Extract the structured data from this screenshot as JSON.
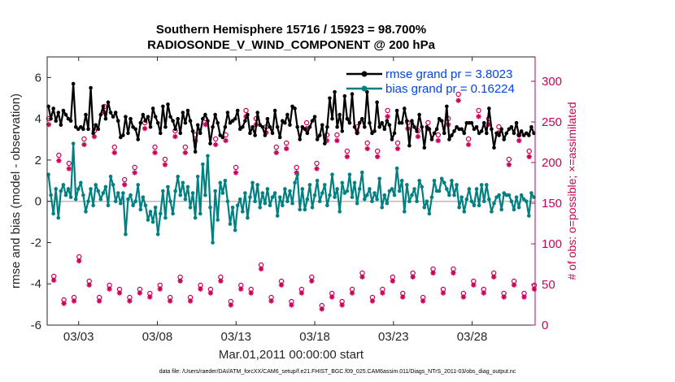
{
  "chart_data": {
    "type": "line",
    "title": "Southern Hemisphere 15716 / 15923 = 98.700%",
    "subtitle": "RADIOSONDE_V_WIND_COMPONENT @ 200 hPa",
    "xlabel": "Mar.01,2011 00:00:00 start",
    "ylabel": "rmse and bias (model - observation)",
    "y2label": "# of obs: o=possible; ×=assimilated",
    "xlim": [
      0,
      31
    ],
    "ylim": [
      -6,
      7
    ],
    "y2lim": [
      0,
      330
    ],
    "x_ticks": [
      2,
      7,
      12,
      17,
      22,
      27
    ],
    "x_tick_labels": [
      "03/03",
      "03/08",
      "03/13",
      "03/18",
      "03/23",
      "03/28"
    ],
    "y_ticks": [
      -6,
      -4,
      -2,
      0,
      2,
      4,
      6
    ],
    "y2_ticks": [
      0,
      50,
      100,
      150,
      200,
      250,
      300
    ],
    "legend_position": "top-right",
    "footer": "data file: /Users/raeder/DAI/ATM_forcXX/CAM6_setup/f.e21.FHIST_BGC.f09_025.CAM6assim.011/Diags_NTrS_2011-03/obs_diag_output.nc",
    "colors": {
      "rmse": "#000000",
      "bias": "#008080",
      "counts": "#cc0055",
      "zero_line": "#bbbbbb"
    },
    "series": [
      {
        "name": "rmse grand pr = 3.8023",
        "values": [
          4.6,
          4.0,
          4.5,
          3.9,
          4.3,
          3.7,
          4.4,
          4.2,
          4.0,
          3.9,
          5.7,
          3.6,
          3.5,
          3.6,
          3.5,
          4.2,
          3.5,
          5.5,
          3.3,
          3.7,
          3.5,
          4.2,
          4.6,
          4.0,
          4.8,
          4.3,
          4.1,
          4.3,
          3.9,
          3.1,
          3.2,
          4.1,
          3.3,
          4.0,
          3.6,
          3.5,
          3.0,
          3.8,
          4.2,
          3.9,
          4.1,
          3.6,
          4.5,
          4.1,
          3.8,
          3.3,
          4.6,
          3.6,
          4.7,
          4.1,
          3.9,
          3.5,
          4.0,
          3.3,
          4.3,
          3.8,
          4.4,
          3.9,
          3.4,
          2.4,
          3.7,
          3.3,
          4.0,
          4.2,
          3.9,
          2.8,
          3.6,
          4.2,
          3.8,
          3.2,
          3.1,
          3.6,
          4.3,
          3.8,
          3.9,
          4.0,
          4.4,
          3.5,
          3.6,
          3.9,
          4.2,
          3.3,
          3.6,
          3.2,
          4.3,
          3.7,
          3.6,
          3.2,
          4.0,
          3.6,
          3.3,
          4.4,
          3.6,
          3.1,
          3.9,
          3.8,
          4.2,
          3.7,
          4.6,
          4.5,
          3.6,
          3.0,
          3.6,
          3.5,
          3.3,
          3.6,
          3.9,
          4.1,
          3.0,
          3.2,
          3.7,
          2.8,
          3.6,
          5.0,
          4.0,
          5.3,
          3.6,
          4.2,
          3.4,
          5.1,
          4.0,
          3.8,
          5.2,
          3.6,
          3.3,
          3.8,
          4.0,
          3.6,
          5.3,
          3.8,
          3.3,
          3.4,
          4.8,
          3.6,
          3.8,
          3.5,
          3.9,
          3.7,
          3.0,
          3.3,
          4.4,
          3.8,
          3.8,
          4.5,
          3.9,
          2.7,
          3.9,
          3.6,
          3.4,
          4.2,
          3.6,
          2.6,
          3.6,
          3.5,
          3.0,
          3.3,
          3.5,
          4.0,
          3.9,
          3.3,
          4.6,
          3.0,
          3.2,
          3.4,
          3.6,
          3.5,
          3.5,
          3.3,
          3.8,
          3.8,
          3.8,
          3.5,
          3.6,
          3.3,
          3.4,
          3.8,
          3.3,
          4.5,
          3.5,
          2.6,
          3.3,
          3.2,
          3.5,
          3.0,
          3.3,
          3.5,
          3.6,
          3.3,
          3.8,
          3.2,
          3.4,
          3.2,
          3.3,
          3.2,
          3.6,
          3.3
        ]
      },
      {
        "name": "bias grand pr = 0.16224",
        "values": [
          1.3,
          0.3,
          -0.6,
          0.6,
          -0.8,
          0.5,
          0.8,
          0.3,
          0.6,
          0.2,
          2.8,
          0.1,
          0.6,
          0.9,
          0.3,
          -0.5,
          0.0,
          0.6,
          -0.2,
          0.8,
          0.5,
          0.1,
          0.4,
          0.7,
          -0.2,
          1.2,
          0.8,
          0.0,
          0.4,
          -0.1,
          0.4,
          -1.6,
          0.1,
          0.3,
          -0.2,
          0.0,
          0.8,
          -0.4,
          0.2,
          -0.2,
          -0.9,
          -0.5,
          -1.0,
          -0.3,
          -1.6,
          -0.6,
          0.5,
          -0.8,
          0.7,
          0.0,
          -0.6,
          0.5,
          1.2,
          0.3,
          0.9,
          0.1,
          0.7,
          -0.3,
          0.4,
          -0.8,
          1.2,
          -0.6,
          1.8,
          0.3,
          2.2,
          -0.3,
          -2.0,
          0.5,
          -0.9,
          0.9,
          0.4,
          1.0,
          0.0,
          -1.1,
          -0.3,
          -1.4,
          -0.2,
          0.1,
          -0.5,
          0.4,
          -0.8,
          0.2,
          0.9,
          0.0,
          0.8,
          -0.3,
          0.4,
          -0.1,
          0.6,
          -0.2,
          0.2,
          0.4,
          -0.7,
          0.2,
          -0.2,
          0.6,
          0.0,
          0.5,
          -0.1,
          0.9,
          1.3,
          -0.4,
          0.6,
          -0.4,
          0.1,
          0.8,
          -0.3,
          0.3,
          1.0,
          0.0,
          0.4,
          0.8,
          -0.2,
          0.3,
          1.3,
          0.2,
          0.6,
          -0.5,
          0.9,
          0.4,
          0.5,
          1.3,
          0.2,
          0.9,
          -0.1,
          0.6,
          1.4,
          0.1,
          0.3,
          0.6,
          0.0,
          0.4,
          0.1,
          1.1,
          -0.3,
          0.3,
          -0.1,
          0.5,
          0.6,
          0.3,
          1.6,
          0.5,
          1.0,
          -0.5,
          0.8,
          0.0,
          0.3,
          0.6,
          0.0,
          1.0,
          0.7,
          -0.3,
          0.0,
          -0.6,
          0.2,
          1.0,
          0.5,
          0.5,
          1.1,
          0.9,
          0.6,
          0.3,
          1.0,
          0.3,
          0.8,
          -0.3,
          0.2,
          -0.5,
          0.1,
          0.6,
          0.0,
          -0.2,
          0.6,
          -0.2,
          0.8,
          0.0,
          0.8,
          0.1,
          -0.5,
          -0.1,
          0.2,
          0.3,
          -0.4,
          0.4,
          0.3,
          0.3,
          0.0,
          -0.4,
          0.2,
          -0.3,
          0.3,
          0.1,
          0.0,
          -0.7,
          0.4,
          0.2
        ]
      }
    ],
    "counts_possible": [
      250,
      56,
      205,
      27,
      195,
      30,
      80,
      225,
      50,
      235,
      30,
      265,
      45,
      215,
      40,
      175,
      30,
      190,
      40,
      245,
      35,
      215,
      45,
      200,
      30,
      235,
      55,
      215,
      30,
      230,
      45,
      250,
      40,
      225,
      55,
      230,
      25,
      190,
      45,
      260,
      40,
      250,
      70,
      240,
      30,
      215,
      50,
      220,
      25,
      190,
      40,
      245,
      55,
      195,
      20,
      230,
      35,
      230,
      25,
      210,
      40,
      240,
      60,
      220,
      30,
      210,
      40,
      260,
      55,
      220,
      35,
      245,
      60,
      235,
      30,
      245,
      65,
      230,
      40,
      250,
      65,
      280,
      35,
      225,
      50,
      260,
      40,
      250,
      60,
      240,
      35,
      200,
      50,
      230,
      35,
      210,
      45
    ]
  }
}
